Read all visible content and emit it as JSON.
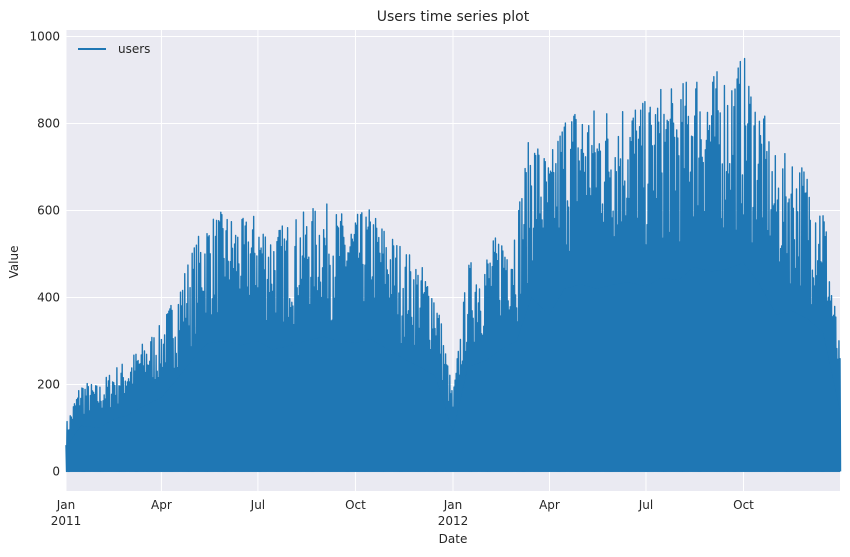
{
  "chart_data": {
    "type": "area",
    "title": "Users time series plot",
    "xlabel": "Date",
    "ylabel": "Value",
    "x_range": [
      "2011-01-01",
      "2012-12-31"
    ],
    "ylim": [
      -45,
      1015
    ],
    "grid": true,
    "legend_position": "top-left",
    "yticks": [
      0,
      200,
      400,
      600,
      800,
      1000
    ],
    "yticks_labels": [
      "0",
      "200",
      "400",
      "600",
      "800",
      "1000"
    ],
    "xticks": [
      {
        "date": "2011-01-01",
        "label": "Jan",
        "sublabel": "2011"
      },
      {
        "date": "2011-04-01",
        "label": "Apr",
        "sublabel": ""
      },
      {
        "date": "2011-07-01",
        "label": "Jul",
        "sublabel": ""
      },
      {
        "date": "2011-10-01",
        "label": "Oct",
        "sublabel": ""
      },
      {
        "date": "2012-01-01",
        "label": "Jan",
        "sublabel": "2012"
      },
      {
        "date": "2012-04-01",
        "label": "Apr",
        "sublabel": ""
      },
      {
        "date": "2012-07-01",
        "label": "Jul",
        "sublabel": ""
      },
      {
        "date": "2012-10-01",
        "label": "Oct",
        "sublabel": ""
      }
    ],
    "series": [
      {
        "name": "users",
        "color": "#1f77b4",
        "description_of_values": "daily maximum of hourly users (minimum near 0 every day)",
        "x": [
          "2011-01-01",
          "2011-01-15",
          "2011-02-01",
          "2011-02-15",
          "2011-03-01",
          "2011-03-15",
          "2011-04-01",
          "2011-04-15",
          "2011-05-01",
          "2011-05-15",
          "2011-06-01",
          "2011-06-15",
          "2011-07-01",
          "2011-07-15",
          "2011-08-01",
          "2011-08-15",
          "2011-09-01",
          "2011-09-15",
          "2011-10-01",
          "2011-10-15",
          "2011-11-01",
          "2011-11-15",
          "2011-12-01",
          "2011-12-15",
          "2012-01-01",
          "2012-01-15",
          "2012-02-01",
          "2012-02-15",
          "2012-03-01",
          "2012-03-15",
          "2012-04-01",
          "2012-04-15",
          "2012-05-01",
          "2012-05-15",
          "2012-06-01",
          "2012-06-15",
          "2012-07-01",
          "2012-07-15",
          "2012-08-01",
          "2012-08-15",
          "2012-09-01",
          "2012-09-15",
          "2012-10-01",
          "2012-10-15",
          "2012-11-01",
          "2012-11-15",
          "2012-12-01",
          "2012-12-15",
          "2012-12-31"
        ],
        "y": [
          110,
          210,
          200,
          240,
          260,
          300,
          340,
          420,
          520,
          590,
          600,
          580,
          600,
          560,
          580,
          600,
          620,
          600,
          590,
          610,
          560,
          520,
          480,
          440,
          180,
          480,
          510,
          560,
          600,
          800,
          720,
          840,
          860,
          840,
          860,
          870,
          850,
          890,
          880,
          940,
          920,
          930,
          960,
          870,
          720,
          740,
          700,
          640,
          280
        ]
      }
    ]
  }
}
